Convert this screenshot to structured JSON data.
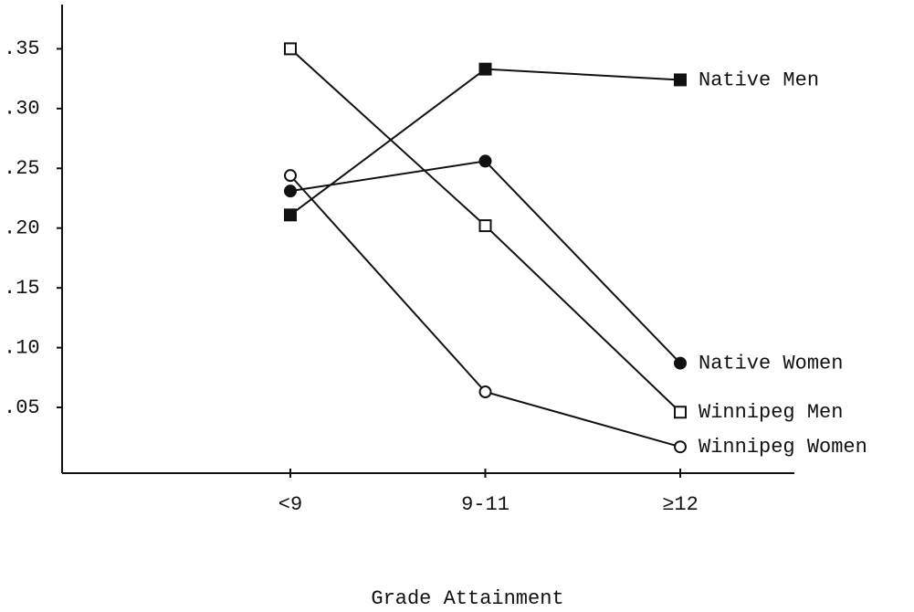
{
  "chart_data": {
    "type": "line",
    "x_label": "Grade Attainment",
    "categories": [
      "<9",
      "9-11",
      "≥12"
    ],
    "series": [
      {
        "name": "Native Men",
        "marker": "square",
        "filled": true,
        "color": "#111111",
        "values": [
          0.211,
          0.333,
          0.324
        ]
      },
      {
        "name": "Native Women",
        "marker": "circle",
        "filled": true,
        "color": "#111111",
        "values": [
          0.231,
          0.256,
          0.087
        ]
      },
      {
        "name": "Winnipeg Men",
        "marker": "square",
        "filled": false,
        "color": "#111111",
        "values": [
          0.35,
          0.202,
          0.046
        ]
      },
      {
        "name": "Winnipeg Women",
        "marker": "circle",
        "filled": false,
        "color": "#111111",
        "values": [
          0.244,
          0.063,
          0.017
        ]
      }
    ],
    "ylim": [
      -0.005,
      0.387
    ],
    "yticks": [
      {
        "value": 0.05,
        "label": ".05"
      },
      {
        "value": 0.1,
        "label": ".10"
      },
      {
        "value": 0.15,
        "label": ".15"
      },
      {
        "value": 0.2,
        "label": ".20"
      },
      {
        "value": 0.25,
        "label": ".25"
      },
      {
        "value": 0.3,
        "label": ".30"
      },
      {
        "value": 0.35,
        "label": ".35"
      }
    ]
  }
}
